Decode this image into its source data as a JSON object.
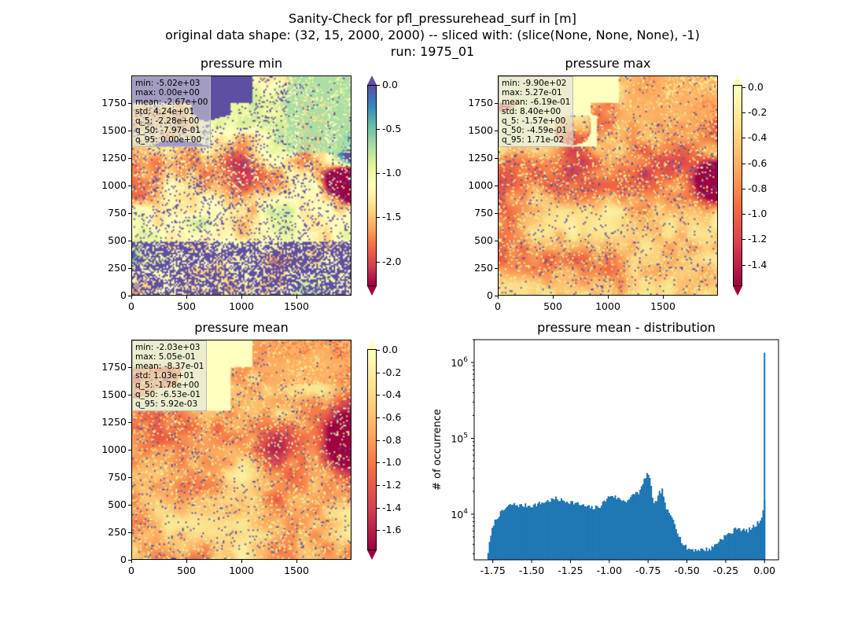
{
  "figure": {
    "suptitle_lines": [
      "Sanity-Check for pfl_pressurehead_surf in [m]",
      "original data shape: (32, 15, 2000, 2000) -- sliced with: (slice(None, None, None), -1)",
      "run: 1975_01"
    ]
  },
  "panels": [
    {
      "title": "pressure min",
      "x_ticks": [
        "0",
        "500",
        "1000",
        "1500"
      ],
      "y_ticks": [
        "0",
        "250",
        "500",
        "750",
        "1000",
        "1250",
        "1500",
        "1750"
      ],
      "stats": [
        "min: -5.02e+03",
        "max: 0.00e+00",
        "mean: -2.67e+00",
        "std: 4.24e+01",
        "q_5: -2.28e+00",
        "q_50: -7.97e-01",
        "q_95: 0.00e+00"
      ],
      "colorbar": {
        "ticks": [
          "0.0",
          "-0.5",
          "-1.0",
          "-1.5",
          "-2.0"
        ],
        "range": [
          -2.28,
          0.0
        ],
        "extend": "both"
      }
    },
    {
      "title": "pressure max",
      "x_ticks": [
        "0",
        "500",
        "1000",
        "1500"
      ],
      "y_ticks": [
        "0",
        "250",
        "500",
        "750",
        "1000",
        "1250",
        "1500",
        "1750"
      ],
      "stats": [
        "min: -9.90e+02",
        "max: 5.27e-01",
        "mean: -6.19e-01",
        "std: 8.40e+00",
        "q_5: -1.57e+00",
        "q_50: -4.59e-01",
        "q_95: 1.71e-02"
      ],
      "colorbar": {
        "ticks": [
          "0.0",
          "-0.2",
          "-0.4",
          "-0.6",
          "-0.8",
          "-1.0",
          "-1.2",
          "-1.4"
        ],
        "range": [
          -1.57,
          0.0171
        ],
        "extend": "both"
      }
    },
    {
      "title": "pressure mean",
      "x_ticks": [
        "0",
        "500",
        "1000",
        "1500"
      ],
      "y_ticks": [
        "0",
        "250",
        "500",
        "750",
        "1000",
        "1250",
        "1500",
        "1750"
      ],
      "stats": [
        "min: -2.03e+03",
        "max: 5.05e-01",
        "mean: -8.37e-01",
        "std: 1.03e+01",
        "q_5: -1.78e+00",
        "q_50: -6.53e-01",
        "q_95: 5.92e-03"
      ],
      "colorbar": {
        "ticks": [
          "0.0",
          "-0.2",
          "-0.4",
          "-0.6",
          "-0.8",
          "-1.0",
          "-1.2",
          "-1.4",
          "-1.6"
        ],
        "range": [
          -1.78,
          0.0059
        ],
        "extend": "both"
      }
    }
  ],
  "chart_data": [
    {
      "type": "heatmap",
      "title": "pressure min",
      "xlim": [
        0,
        2000
      ],
      "ylim": [
        0,
        2000
      ],
      "colormap": "Spectral",
      "vmin": -2.28,
      "vmax": 0.0
    },
    {
      "type": "heatmap",
      "title": "pressure max",
      "xlim": [
        0,
        2000
      ],
      "ylim": [
        0,
        2000
      ],
      "colormap": "Spectral",
      "vmin": -1.57,
      "vmax": 0.0171
    },
    {
      "type": "heatmap",
      "title": "pressure mean",
      "xlim": [
        0,
        2000
      ],
      "ylim": [
        0,
        2000
      ],
      "colormap": "Spectral",
      "vmin": -1.78,
      "vmax": 0.0059
    },
    {
      "type": "bar",
      "title": "pressure mean - distribution",
      "xlabel": "",
      "ylabel": "# of occurrence",
      "yscale": "log",
      "xlim": [
        -1.87,
        0.09
      ],
      "ylim": [
        2500,
        2000000
      ],
      "x_ticks": [
        "-1.75",
        "-1.50",
        "-1.25",
        "-1.00",
        "-0.75",
        "-0.50",
        "-0.25",
        "0.00"
      ],
      "y_ticks": [
        "10^4",
        "10^5",
        "10^6"
      ],
      "bar_color": "#1f77b4",
      "bin_width": 0.0089,
      "profile": [
        [
          -1.785,
          3200
        ],
        [
          -1.77,
          4800
        ],
        [
          -1.75,
          7500
        ],
        [
          -1.72,
          9500
        ],
        [
          -1.69,
          11000
        ],
        [
          -1.66,
          12500
        ],
        [
          -1.63,
          13500
        ],
        [
          -1.58,
          13000
        ],
        [
          -1.5,
          13000
        ],
        [
          -1.42,
          14500
        ],
        [
          -1.35,
          16000
        ],
        [
          -1.3,
          15000
        ],
        [
          -1.25,
          14500
        ],
        [
          -1.2,
          13500
        ],
        [
          -1.15,
          12500
        ],
        [
          -1.1,
          12000
        ],
        [
          -1.06,
          13000
        ],
        [
          -1.02,
          16000
        ],
        [
          -0.99,
          18000
        ],
        [
          -0.96,
          16500
        ],
        [
          -0.93,
          15500
        ],
        [
          -0.9,
          15000
        ],
        [
          -0.87,
          16000
        ],
        [
          -0.84,
          19000
        ],
        [
          -0.81,
          19500
        ],
        [
          -0.79,
          24000
        ],
        [
          -0.77,
          32000
        ],
        [
          -0.755,
          35000
        ],
        [
          -0.74,
          26000
        ],
        [
          -0.72,
          14500
        ],
        [
          -0.7,
          14000
        ],
        [
          -0.68,
          19500
        ],
        [
          -0.66,
          21000
        ],
        [
          -0.645,
          13000
        ],
        [
          -0.62,
          10000
        ],
        [
          -0.59,
          8500
        ],
        [
          -0.56,
          5500
        ],
        [
          -0.53,
          4000
        ],
        [
          -0.5,
          3500
        ],
        [
          -0.45,
          3400
        ],
        [
          -0.4,
          3400
        ],
        [
          -0.35,
          3500
        ],
        [
          -0.32,
          4000
        ],
        [
          -0.28,
          4800
        ],
        [
          -0.25,
          5300
        ],
        [
          -0.21,
          5800
        ],
        [
          -0.18,
          6800
        ],
        [
          -0.15,
          6200
        ],
        [
          -0.12,
          6000
        ],
        [
          -0.09,
          6500
        ],
        [
          -0.06,
          7200
        ],
        [
          -0.03,
          8500
        ],
        [
          -0.01,
          12000
        ],
        [
          -0.004,
          17000
        ],
        [
          0.0,
          1350000
        ]
      ]
    }
  ]
}
